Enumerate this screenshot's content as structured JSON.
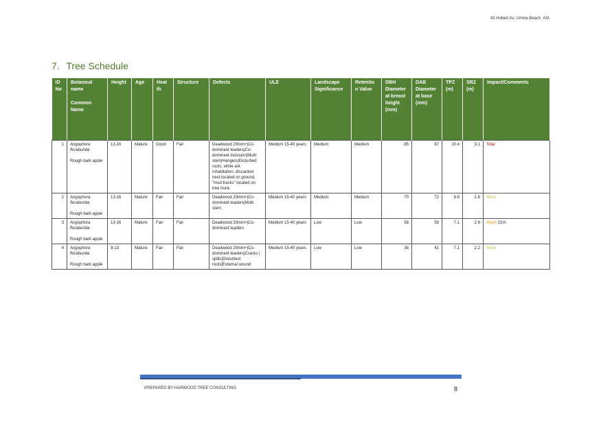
{
  "header": {
    "address": "42 Hobart Av, Umina Beach. AIA"
  },
  "section": {
    "number": "7.",
    "title": "Tree Schedule"
  },
  "columns": [
    [
      "ID",
      "No"
    ],
    [
      "Botanical",
      "name",
      "",
      "Common",
      "Name"
    ],
    [
      "Height"
    ],
    [
      "Age"
    ],
    [
      "Heal",
      "th"
    ],
    [
      "Structure"
    ],
    [
      "Defects"
    ],
    [
      "ULE"
    ],
    [
      "Landscape",
      "Significance"
    ],
    [
      "Retentio",
      "n Value"
    ],
    [
      "DBH",
      "Diameter",
      "at breast",
      "height",
      "(mm)"
    ],
    [
      "DAB",
      "Diameter",
      "at base",
      "(mm)"
    ],
    [
      "TPZ",
      "(m)"
    ],
    [
      "SRZ",
      "(m)"
    ],
    [
      "Impact/Comments"
    ]
  ],
  "rows": [
    {
      "id": "1",
      "botanical": "Angophora florabunda",
      "common": "Rough bark apple",
      "height": "13-16",
      "age": "Mature",
      "health": "Good",
      "structure": "Fair",
      "defects": "Deadwood 20mm+|Co-dominant leaders|Co-dominant inclusion|Multi stem|Hangers|Disturbed roots, white ant inhabitation, discarded nest located on ground, \"mud tracks\" located on tree trunk",
      "ule": "Medium 15-40 years",
      "landscape": "Medium",
      "retention": "Medium",
      "dbh": "85",
      "dab": "87",
      "tpz": "10.4",
      "srz": "3.1",
      "impact": "Total",
      "impact_extra": "",
      "impact_color": "#c00000"
    },
    {
      "id": "2",
      "botanical": "Angophora florabunda",
      "common": "Rough bark apple",
      "height": "13-16",
      "age": "Mature",
      "health": "Fair",
      "structure": "Fair",
      "defects": "Deadwood 20mm+|Co-dominant leaders|Multi stem",
      "ule": "Medium 15-40 years",
      "landscape": "Medium",
      "retention": "Medium",
      "dbh": "70",
      "dab": "72",
      "tpz": "8.6",
      "srz": "2.8",
      "impact": "Minor",
      "impact_extra": "",
      "impact_color": "#c9b640"
    },
    {
      "id": "3",
      "botanical": "Angophora florabunda",
      "common": "Rough bark apple",
      "height": "13-16",
      "age": "Mature",
      "health": "Fair",
      "structure": "Fair",
      "defects": "Deadwood 20mm+|Co-dominant leaders",
      "ule": "Medium 15-40 years",
      "landscape": "Low",
      "retention": "Low",
      "dbh": "58",
      "dab": "59",
      "tpz": "7.1",
      "srz": "2.6",
      "impact": "Major",
      "impact_extra": " 21%",
      "impact_color": "#e6a020"
    },
    {
      "id": "4",
      "botanical": "Angophora florabunda",
      "common": "Rough bark apple",
      "height": "9-13",
      "age": "Mature",
      "health": "Fair",
      "structure": "Fair",
      "defects": "Deadwood 20mm+|Co-dominant leaders|Cracks | splits|Disturbed roots|External wound",
      "ule": "Medium 15-40 years",
      "landscape": "Low",
      "retention": "Low",
      "dbh": "38",
      "dab": "41",
      "tpz": "7.1",
      "srz": "2.2",
      "impact": "Minor",
      "impact_extra": "",
      "impact_color": "#c9b640"
    }
  ],
  "footer": {
    "prepared_by": "PREPARED BY HARWOOD TREE CONSULTING",
    "page_number": "8"
  },
  "colors": {
    "header_green": "#548235",
    "title_green": "#4f7b2e",
    "footer_blue": "#4472c4"
  }
}
